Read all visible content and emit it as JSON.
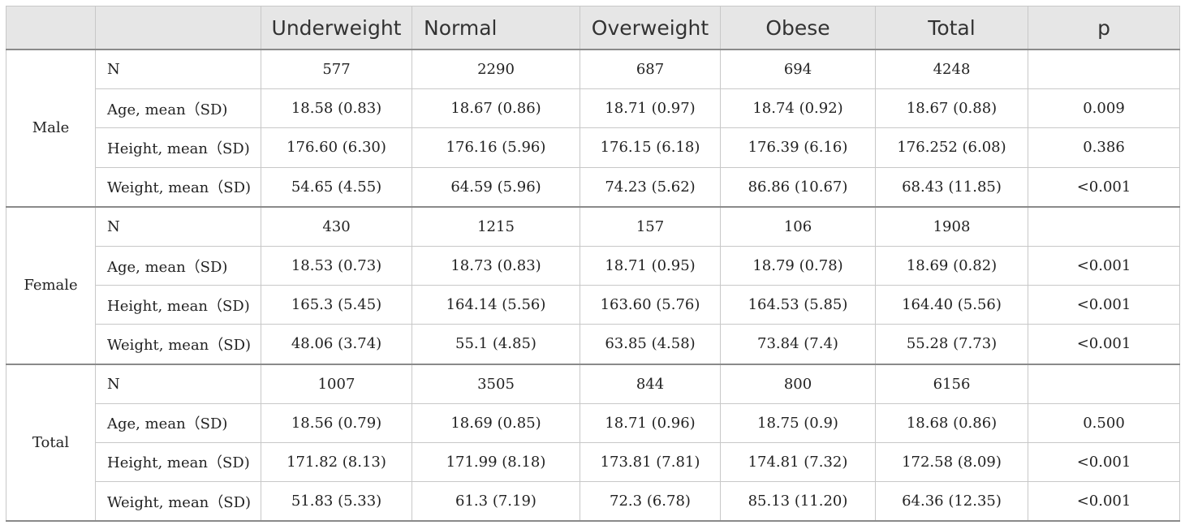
{
  "table": {
    "headers": [
      "",
      "",
      "Underweight",
      "Normal",
      "Overweight",
      "Obese",
      "Total",
      "p"
    ],
    "groups": [
      {
        "name": "Male",
        "rows": [
          {
            "label": "N",
            "values": [
              "577",
              "2290",
              "687",
              "694",
              "4248",
              ""
            ]
          },
          {
            "label": "Age, mean（SD)",
            "values": [
              "18.58 (0.83)",
              "18.67 (0.86)",
              "18.71 (0.97)",
              "18.74 (0.92)",
              "18.67 (0.88)",
              "0.009"
            ]
          },
          {
            "label": "Height, mean（SD)",
            "values": [
              "176.60 (6.30)",
              "176.16 (5.96)",
              "176.15 (6.18)",
              "176.39 (6.16)",
              "176.252 (6.08)",
              "0.386"
            ]
          },
          {
            "label": "Weight, mean（SD)",
            "values": [
              "54.65 (4.55)",
              "64.59 (5.96)",
              "74.23 (5.62)",
              "86.86 (10.67)",
              "68.43 (11.85)",
              "<0.001"
            ]
          }
        ]
      },
      {
        "name": "Female",
        "rows": [
          {
            "label": "N",
            "values": [
              "430",
              "1215",
              "157",
              "106",
              "1908",
              ""
            ]
          },
          {
            "label": "Age, mean（SD)",
            "values": [
              "18.53 (0.73)",
              "18.73 (0.83)",
              "18.71 (0.95)",
              "18.79 (0.78)",
              "18.69 (0.82)",
              "<0.001"
            ]
          },
          {
            "label": "Height, mean（SD)",
            "values": [
              "165.3 (5.45)",
              "164.14 (5.56)",
              "163.60 (5.76)",
              "164.53 (5.85)",
              "164.40 (5.56)",
              "<0.001"
            ]
          },
          {
            "label": "Weight, mean（SD)",
            "values": [
              "48.06 (3.74)",
              "55.1 (4.85)",
              "63.85 (4.58)",
              "73.84 (7.4)",
              "55.28 (7.73)",
              "<0.001"
            ]
          }
        ]
      },
      {
        "name": "Total",
        "rows": [
          {
            "label": "N",
            "values": [
              "1007",
              "3505",
              "844",
              "800",
              "6156",
              ""
            ]
          },
          {
            "label": "Age, mean（SD)",
            "values": [
              "18.56 (0.79)",
              "18.69 (0.85)",
              "18.71 (0.96)",
              "18.75 (0.9)",
              "18.68 (0.86)",
              "0.500"
            ]
          },
          {
            "label": "Height, mean（SD)",
            "values": [
              "171.82 (8.13)",
              "171.99 (8.18)",
              "173.81 (7.81)",
              "174.81 (7.32)",
              "172.58 (8.09)",
              "<0.001"
            ]
          },
          {
            "label": "Weight, mean（SD)",
            "values": [
              "51.83 (5.33)",
              "61.3 (7.19)",
              "72.3 (6.78)",
              "85.13 (11.20)",
              "64.36 (12.35)",
              "<0.001"
            ]
          }
        ]
      }
    ]
  }
}
